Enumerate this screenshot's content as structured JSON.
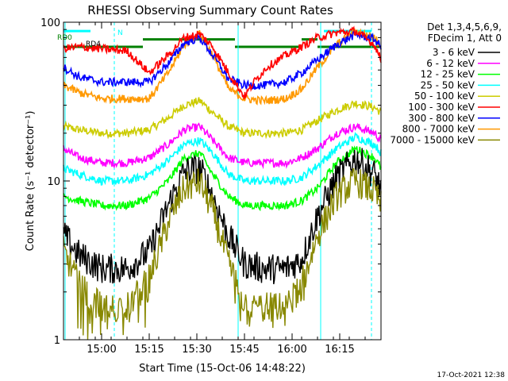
{
  "chart_data": {
    "type": "line",
    "title": "RHESSI Observing Summary Count Rates",
    "xlabel": "Start Time (15-Oct-06 14:48:22)",
    "ylabel": "Count Rate (s⁻¹ detector⁻¹)",
    "yscale": "log",
    "ylim": [
      1,
      100
    ],
    "xlim_minutes": [
      0,
      100
    ],
    "x_tick_labels": [
      "15:00",
      "15:15",
      "15:30",
      "15:45",
      "16:00",
      "16:15"
    ],
    "x_tick_minutes": [
      12,
      27,
      42,
      57,
      72,
      87
    ],
    "y_tick_labels": [
      "1",
      "10",
      "100"
    ],
    "y_tick_values": [
      1,
      10,
      100
    ],
    "legend_header": [
      "Det 1,3,4,5,6,9,",
      "FDecim 1, Att 0"
    ],
    "annotations": [
      "RD0",
      "N",
      "RD4"
    ],
    "series": [
      {
        "name": "3 - 6 keV",
        "color": "#000000",
        "x": [
          0,
          5,
          12,
          20,
          27,
          33,
          38,
          43,
          47,
          52,
          57,
          63,
          70,
          75,
          80,
          86,
          92,
          98,
          100
        ],
        "values": [
          4.6,
          3.4,
          2.8,
          2.8,
          3.6,
          7,
          11.5,
          12,
          8,
          4.5,
          3,
          2.8,
          2.8,
          3.2,
          6,
          10.5,
          14,
          11,
          9
        ]
      },
      {
        "name": "6 - 12 keV",
        "color": "#ff00ff",
        "x": [
          0,
          5,
          12,
          20,
          27,
          33,
          38,
          43,
          47,
          52,
          57,
          63,
          70,
          75,
          80,
          86,
          92,
          98,
          100
        ],
        "values": [
          16,
          14,
          13,
          13,
          14,
          17,
          21,
          22,
          18,
          14,
          13,
          13,
          13,
          14,
          16,
          20,
          22,
          20,
          18
        ]
      },
      {
        "name": "12 - 25 keV",
        "color": "#00ff00",
        "x": [
          0,
          5,
          12,
          20,
          27,
          33,
          38,
          43,
          47,
          52,
          57,
          63,
          70,
          75,
          80,
          86,
          92,
          98,
          100
        ],
        "values": [
          8,
          7.5,
          7,
          7,
          7.8,
          10,
          14,
          15,
          11,
          8,
          7,
          7,
          7,
          7.5,
          9,
          13,
          16,
          14,
          12
        ]
      },
      {
        "name": "25 - 50 keV",
        "color": "#00ffff",
        "x": [
          0,
          5,
          12,
          20,
          27,
          33,
          38,
          43,
          47,
          52,
          57,
          63,
          70,
          75,
          80,
          86,
          92,
          98,
          100
        ],
        "values": [
          12,
          11,
          10,
          10,
          11,
          13.5,
          17,
          18,
          15,
          11,
          10,
          10,
          10,
          10.5,
          12.5,
          16,
          19,
          17,
          15
        ]
      },
      {
        "name": "50 - 100 keV",
        "color": "#cccc00",
        "x": [
          0,
          5,
          12,
          20,
          27,
          33,
          38,
          43,
          47,
          52,
          57,
          63,
          70,
          75,
          80,
          86,
          92,
          98,
          100
        ],
        "values": [
          22,
          21,
          20,
          20,
          21,
          25,
          30,
          32,
          27,
          22,
          20,
          20,
          20,
          21,
          24,
          28,
          31,
          29,
          27
        ]
      },
      {
        "name": "100 - 300 keV",
        "color": "#ff0000",
        "x": [
          0,
          5,
          12,
          20,
          27,
          33,
          38,
          43,
          47,
          52,
          57,
          60,
          64,
          70,
          75,
          80,
          86,
          92,
          98,
          100
        ],
        "values": [
          68,
          70,
          68,
          66,
          48,
          62,
          80,
          84,
          70,
          48,
          34,
          42,
          52,
          62,
          70,
          80,
          86,
          88,
          72,
          58
        ]
      },
      {
        "name": "300 - 800 keV",
        "color": "#0000ff",
        "x": [
          0,
          5,
          12,
          20,
          27,
          33,
          38,
          43,
          47,
          52,
          57,
          63,
          70,
          75,
          80,
          86,
          92,
          98,
          100
        ],
        "values": [
          52,
          45,
          42,
          42,
          42,
          55,
          74,
          80,
          62,
          44,
          40,
          40,
          42,
          48,
          58,
          72,
          84,
          78,
          70
        ]
      },
      {
        "name": "800 - 7000 keV",
        "color": "#ff9900",
        "x": [
          0,
          5,
          12,
          20,
          27,
          33,
          38,
          43,
          47,
          52,
          57,
          63,
          70,
          75,
          80,
          86,
          92,
          98,
          100
        ],
        "values": [
          40,
          36,
          33,
          33,
          33,
          48,
          72,
          85,
          62,
          38,
          33,
          32,
          33,
          38,
          52,
          72,
          88,
          80,
          70
        ]
      },
      {
        "name": "7000 - 15000 keV",
        "color": "#888800",
        "x": [
          0,
          5,
          12,
          20,
          27,
          33,
          38,
          43,
          47,
          52,
          57,
          63,
          70,
          75,
          80,
          86,
          92,
          98,
          100
        ],
        "values": [
          3.6,
          2.2,
          1.6,
          1.6,
          2.4,
          5.5,
          9,
          9.8,
          6.5,
          3,
          1.7,
          1.6,
          1.6,
          2.2,
          4.5,
          8,
          10,
          8.5,
          7
        ]
      }
    ],
    "flag_bars": [
      {
        "name": "SAA/attenuator flag",
        "color": "#008000"
      },
      {
        "name": "night flag",
        "color": "#00ffff"
      }
    ]
  },
  "footer_timestamp": "17-Oct-2021 12:38"
}
